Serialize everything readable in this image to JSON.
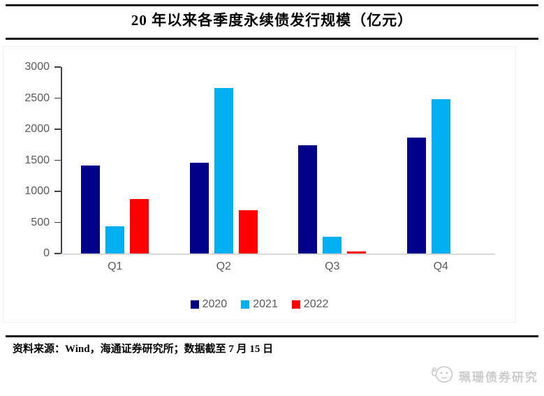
{
  "title": "20 年以来各季度永续债发行规模（亿元）",
  "source_note": "资料来源：Wind，海通证券研究所；数据截至 7 月 15 日",
  "watermark": "珮珊债券研究",
  "colors": {
    "series_2020": "#00008B",
    "series_2021": "#00B0F0",
    "series_2022": "#FF0000",
    "axis_text": "#595959",
    "axis_line": "#404040",
    "baseline": "#D9D9D9",
    "rule": "#141414",
    "watermark": "#CCCCCC"
  },
  "chart_data": {
    "type": "bar",
    "title": "20 年以来各季度永续债发行规模（亿元）",
    "categories": [
      "Q1",
      "Q2",
      "Q3",
      "Q4"
    ],
    "series": [
      {
        "name": "2020",
        "color_key": "series_2020",
        "values": [
          1420,
          1460,
          1740,
          1870
        ]
      },
      {
        "name": "2021",
        "color_key": "series_2021",
        "values": [
          440,
          2660,
          270,
          2480
        ]
      },
      {
        "name": "2022",
        "color_key": "series_2022",
        "values": [
          880,
          700,
          30,
          0
        ]
      }
    ],
    "xlabel": "",
    "ylabel": "",
    "ylim": [
      0,
      3000
    ],
    "yticks": [
      0,
      500,
      1000,
      1500,
      2000,
      2500,
      3000
    ],
    "grid": false,
    "legend_position": "bottom"
  }
}
